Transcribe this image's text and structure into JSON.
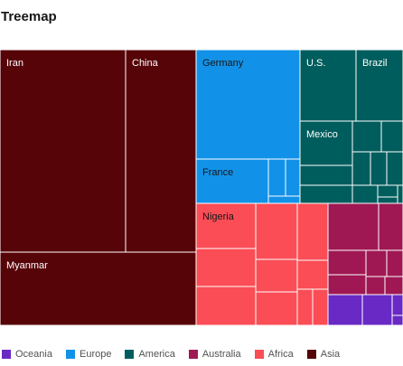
{
  "chart_data": {
    "type": "treemap",
    "title": "Treemap",
    "legend": [
      {
        "name": "Oceania",
        "color": "#6929c4"
      },
      {
        "name": "Europe",
        "color": "#1192e8"
      },
      {
        "name": "America",
        "color": "#005d5d"
      },
      {
        "name": "Australia",
        "color": "#9f1853"
      },
      {
        "name": "Africa",
        "color": "#fa4d56"
      },
      {
        "name": "Asia",
        "color": "#570408"
      }
    ],
    "labeled_nodes": [
      {
        "label": "Iran",
        "group": "Asia"
      },
      {
        "label": "China",
        "group": "Asia"
      },
      {
        "label": "Myanmar",
        "group": "Asia"
      },
      {
        "label": "Germany",
        "group": "Europe"
      },
      {
        "label": "France",
        "group": "Europe"
      },
      {
        "label": "U.S.",
        "group": "America"
      },
      {
        "label": "Brazil",
        "group": "America"
      },
      {
        "label": "Mexico",
        "group": "America"
      },
      {
        "label": "Nigeria",
        "group": "Africa"
      }
    ]
  }
}
